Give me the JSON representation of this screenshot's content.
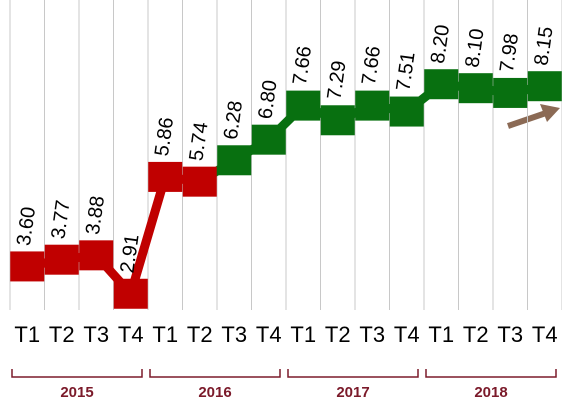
{
  "chart_data": {
    "type": "line",
    "categories": [
      "T1",
      "T2",
      "T3",
      "T4",
      "T1",
      "T2",
      "T3",
      "T4",
      "T1",
      "T2",
      "T3",
      "T4",
      "T1",
      "T2",
      "T3",
      "T4"
    ],
    "years": [
      "2015",
      "2016",
      "2017",
      "2018"
    ],
    "values": [
      3.6,
      3.77,
      3.88,
      2.91,
      5.86,
      5.74,
      6.28,
      6.8,
      7.66,
      7.29,
      7.66,
      7.51,
      8.2,
      8.1,
      7.98,
      8.15
    ],
    "value_labels": [
      "3.60",
      "3.77",
      "3.88",
      "2.91",
      "5.86",
      "5.74",
      "6.28",
      "6.80",
      "7.66",
      "7.29",
      "7.66",
      "7.51",
      "8.20",
      "8.10",
      "7.98",
      "8.15"
    ],
    "point_colors": [
      "#c00000",
      "#c00000",
      "#c00000",
      "#c00000",
      "#c00000",
      "#c00000",
      "#087010",
      "#087010",
      "#087010",
      "#087010",
      "#087010",
      "#087010",
      "#087010",
      "#087010",
      "#087010",
      "#087010"
    ],
    "ylim": [
      2.5,
      10.2
    ],
    "grid": true
  }
}
